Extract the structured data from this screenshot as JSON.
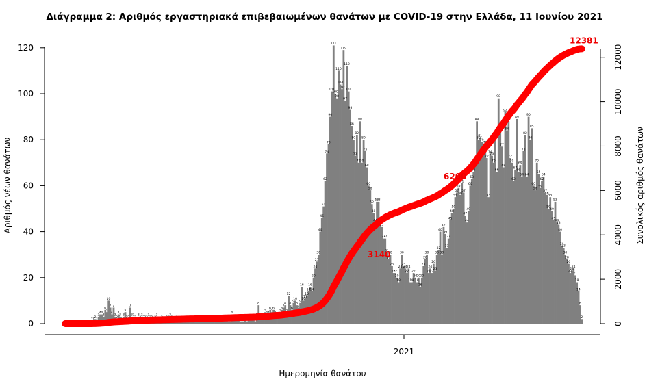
{
  "chart_data": {
    "type": "bar",
    "title": "Διάγραμμα 2: Αριθμός εργαστηριακά επιβεβαιωμένων θανάτων με COVID-19 στην Ελλάδα, 11 Ιουνίου 2021",
    "xlabel": "Ημερομηνία θανάτου",
    "ylabel_left": "Αριθμός νέων θανάτων",
    "ylabel_right": "Συνολικός αριθμός θανάτων",
    "x_tick_labels": [
      "2021"
    ],
    "left_axis": {
      "ylim": [
        0,
        125
      ],
      "ticks": [
        0,
        20,
        40,
        60,
        80,
        100,
        120
      ]
    },
    "right_axis": {
      "ylim": [
        0,
        12700
      ],
      "ticks": [
        0,
        2000,
        4000,
        6000,
        8000,
        10000,
        12000
      ]
    },
    "bar_color": "#808080",
    "line_color": "#ff0000",
    "series": [
      {
        "kind": "bar",
        "axis": "left",
        "values": [
          0,
          0,
          0,
          0,
          0,
          0,
          0,
          0,
          0,
          0,
          0,
          0,
          0,
          0,
          0,
          0,
          1,
          1,
          2,
          1,
          3,
          4,
          4,
          3,
          6,
          5,
          10,
          7,
          4,
          7,
          3,
          2,
          4,
          3,
          1,
          3,
          5,
          2,
          2,
          7,
          3,
          3,
          2,
          1,
          3,
          2,
          3,
          2,
          2,
          2,
          3,
          2,
          2,
          1,
          2,
          3,
          1,
          1,
          2,
          1,
          1,
          2,
          2,
          3,
          2,
          1,
          1,
          2,
          1,
          1,
          2,
          2,
          2,
          1,
          2,
          1,
          1,
          1,
          2,
          1,
          1,
          2,
          2,
          2,
          1,
          1,
          2,
          1,
          1,
          2,
          1,
          2,
          1,
          2,
          2,
          2,
          2,
          2,
          1,
          1,
          4,
          2,
          2,
          2,
          2,
          1,
          1,
          1,
          2,
          1,
          2,
          2,
          2,
          2,
          1,
          3,
          8,
          3,
          2,
          3,
          5,
          4,
          4,
          6,
          5,
          6,
          4,
          3,
          3,
          5,
          6,
          7,
          8,
          5,
          12,
          8,
          6,
          9,
          10,
          8,
          7,
          9,
          16,
          10,
          11,
          12,
          14,
          16,
          14,
          20,
          24,
          27,
          30,
          40,
          46,
          51,
          62,
          74,
          78,
          90,
          101,
          121,
          100,
          98,
          110,
          104,
          102,
          119,
          97,
          112,
          101,
          93,
          86,
          80,
          73,
          82,
          70,
          88,
          70,
          80,
          75,
          68,
          60,
          58,
          52,
          48,
          44,
          53,
          53,
          44,
          42,
          37,
          37,
          31,
          28,
          30,
          25,
          22,
          22,
          20,
          18,
          24,
          30,
          25,
          24,
          22,
          24,
          18,
          18,
          22,
          20,
          18,
          20,
          16,
          20,
          25,
          28,
          30,
          22,
          24,
          22,
          26,
          23,
          30,
          32,
          40,
          30,
          42,
          39,
          33,
          37,
          45,
          48,
          50,
          55,
          57,
          59,
          56,
          61,
          57,
          47,
          44,
          49,
          60,
          63,
          66,
          70,
          88,
          80,
          81,
          79,
          75,
          78,
          72,
          55,
          74,
          73,
          70,
          80,
          66,
          98,
          85,
          77,
          68,
          92,
          84,
          88,
          72,
          70,
          62,
          67,
          89,
          66,
          69,
          64,
          75,
          82,
          64,
          90,
          80,
          85,
          60,
          58,
          70,
          65,
          59,
          62,
          64,
          57,
          56,
          50,
          55,
          49,
          45,
          53,
          44,
          43,
          40,
          34,
          33,
          30,
          28,
          26,
          22,
          23,
          24,
          21,
          18,
          14,
          8,
          2
        ]
      },
      {
        "kind": "line",
        "axis": "right",
        "name": "Συνολικός αριθμός θανάτων",
        "annotations": [
          {
            "label": "3140",
            "value": 3140
          },
          {
            "label": "6200",
            "value": 6200
          },
          {
            "label": "12381",
            "value": 12381
          }
        ]
      }
    ]
  }
}
